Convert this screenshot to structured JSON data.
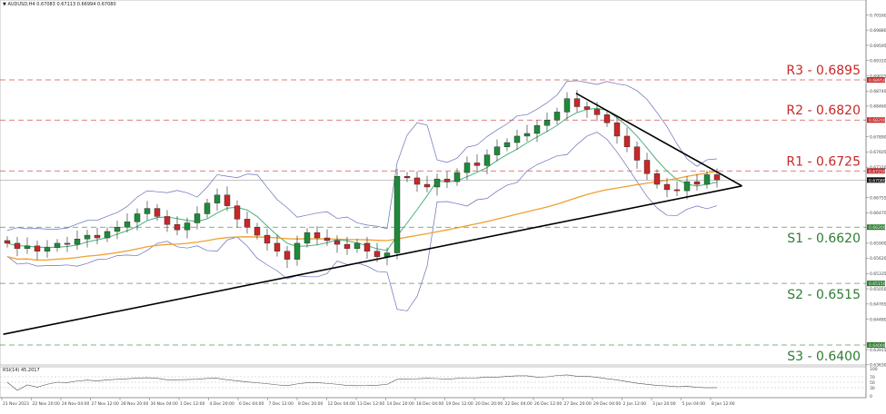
{
  "header": {
    "symbol_timeframe": "AUDUSD,H4",
    "ohlc": "0.67083 0.67113 0.66994 0.67080"
  },
  "colors": {
    "resistance": "#c62828",
    "support": "#2e7d32",
    "bull": "#1f8a3a",
    "bear": "#c62828",
    "ma_fast": "#4caf7a",
    "ma_slow": "#f0a030",
    "bands": "#6670b8",
    "trendline": "#000000"
  },
  "levels": [
    {
      "label": "R3 - 0.6895",
      "price": 0.6895,
      "tag": "0.68950",
      "kind": "resistance"
    },
    {
      "label": "R2 - 0.6820",
      "price": 0.682,
      "tag": "0.68200",
      "kind": "resistance"
    },
    {
      "label": "R1 - 0.6725",
      "price": 0.6725,
      "tag": "0.67250",
      "kind": "resistance"
    },
    {
      "label": "S1 - 0.6620",
      "price": 0.662,
      "tag": "0.66200",
      "kind": "support"
    },
    {
      "label": "S2 - 0.6515",
      "price": 0.6515,
      "tag": "0.65150",
      "kind": "support"
    },
    {
      "label": "S3 - 0.6400",
      "price": 0.64,
      "tag": "0.64000",
      "kind": "support"
    }
  ],
  "current_price": {
    "price": 0.6708,
    "tag": "0.67080"
  },
  "price_axis": [
    "0.70160",
    "0.69880",
    "0.69595",
    "0.69310",
    "0.69025",
    "0.68740",
    "0.68460",
    "0.67890",
    "0.67605",
    "0.67320",
    "0.66755",
    "0.66470",
    "0.65900",
    "0.65620",
    "0.65335",
    "0.65050",
    "0.64765",
    "0.64480",
    "0.63915",
    "0.63630"
  ],
  "time_axis": [
    "21 Nov 2023",
    "22 Nov 20:00",
    "24 Nov 04:00",
    "27 Nov 12:00",
    "28 Nov 20:00",
    "30 Nov 04:00",
    "1 Dec 12:00",
    "4 Dec 20:00",
    "6 Dec 04:00",
    "7 Dec 12:00",
    "8 Dec 20:00",
    "12 Dec 04:00",
    "13 Dec 12:00",
    "14 Dec 20:00",
    "18 Dec 04:00",
    "19 Dec 12:00",
    "20 Dec 20:00",
    "22 Dec 04:00",
    "26 Dec 12:00",
    "27 Dec 20:00",
    "29 Dec 04:00",
    "2 Jan 12:00",
    "3 Jan 20:00",
    "5 Jan 04:00",
    "8 Jan 12:00"
  ],
  "rsi": {
    "label": "RSI(14) 45.2017",
    "axis": [
      "100",
      "70",
      "50",
      "30",
      "0"
    ]
  },
  "chart_data": {
    "type": "candlestick",
    "closes": [
      0.659,
      0.658,
      0.6585,
      0.6575,
      0.6582,
      0.659,
      0.6588,
      0.6598,
      0.6605,
      0.66,
      0.6612,
      0.662,
      0.663,
      0.6645,
      0.6655,
      0.664,
      0.6625,
      0.6615,
      0.6628,
      0.6645,
      0.6665,
      0.668,
      0.666,
      0.6635,
      0.662,
      0.6605,
      0.659,
      0.6575,
      0.656,
      0.659,
      0.661,
      0.66,
      0.6595,
      0.6588,
      0.658,
      0.659,
      0.6575,
      0.6565,
      0.6572,
      0.6715,
      0.6712,
      0.67,
      0.6695,
      0.671,
      0.6705,
      0.6722,
      0.674,
      0.6735,
      0.6755,
      0.677,
      0.6778,
      0.679,
      0.6795,
      0.681,
      0.682,
      0.6835,
      0.686,
      0.6845,
      0.684,
      0.683,
      0.6815,
      0.679,
      0.677,
      0.6745,
      0.672,
      0.67,
      0.669,
      0.6688,
      0.6705,
      0.67,
      0.6718,
      0.6708
    ],
    "trendlines": [
      {
        "name": "ascending",
        "from": {
          "index": -0.4,
          "price": 0.642
        },
        "to": {
          "index": 73.5,
          "price": 0.6697
        }
      },
      {
        "name": "descending",
        "from": {
          "index": 56.9,
          "price": 0.687
        },
        "to": {
          "index": 73.5,
          "price": 0.6697
        }
      }
    ]
  }
}
